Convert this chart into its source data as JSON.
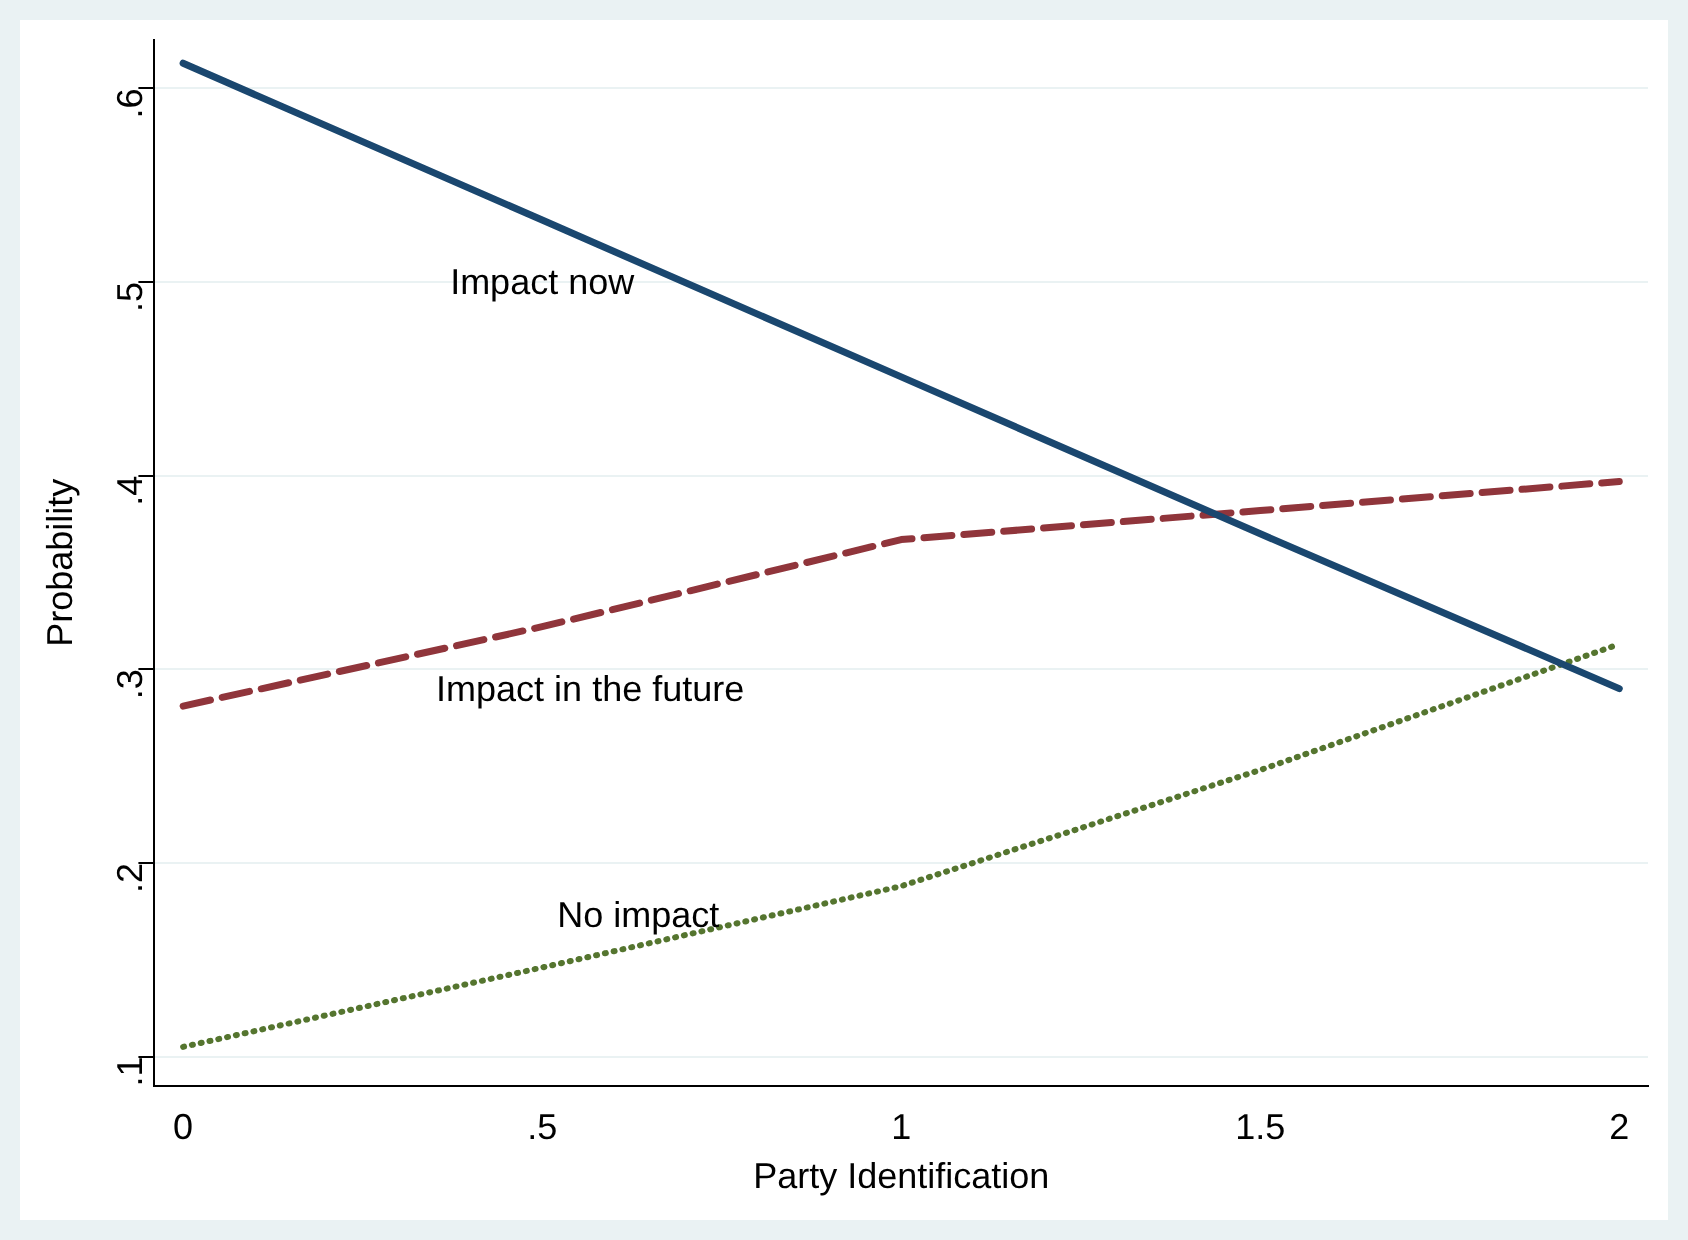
{
  "chart_data": {
    "type": "line",
    "xlabel": "Party Identification",
    "ylabel": "Probability",
    "x": [
      0,
      0.5,
      1,
      1.5,
      2
    ],
    "series": [
      {
        "name": "Impact now",
        "color": "#1a476f",
        "line_style": "solid",
        "values": [
          0.613,
          0.532,
          0.451,
          0.37,
          0.29
        ]
      },
      {
        "name": "Impact in the future",
        "color": "#90353b",
        "line_style": "dashed",
        "values": [
          0.281,
          0.322,
          0.367,
          0.382,
          0.397
        ]
      },
      {
        "name": "No impact",
        "color": "#55752f",
        "line_style": "dotted",
        "values": [
          0.105,
          0.146,
          0.188,
          0.248,
          0.313
        ]
      }
    ],
    "xlim": [
      -0.04,
      2.04
    ],
    "ylim": [
      0.085,
      0.625
    ],
    "xticks": [
      0,
      {
        "value": 0.5,
        "label": ".5"
      },
      1,
      1.5,
      2
    ],
    "yticks": [
      {
        "value": 0.1,
        "label": ".1"
      },
      {
        "value": 0.2,
        "label": ".2"
      },
      {
        "value": 0.3,
        "label": ".3"
      },
      {
        "value": 0.4,
        "label": ".4"
      },
      {
        "value": 0.5,
        "label": ".5"
      },
      {
        "value": 0.6,
        "label": ".6"
      }
    ],
    "grid": "y",
    "legend": false,
    "marker": "none"
  }
}
